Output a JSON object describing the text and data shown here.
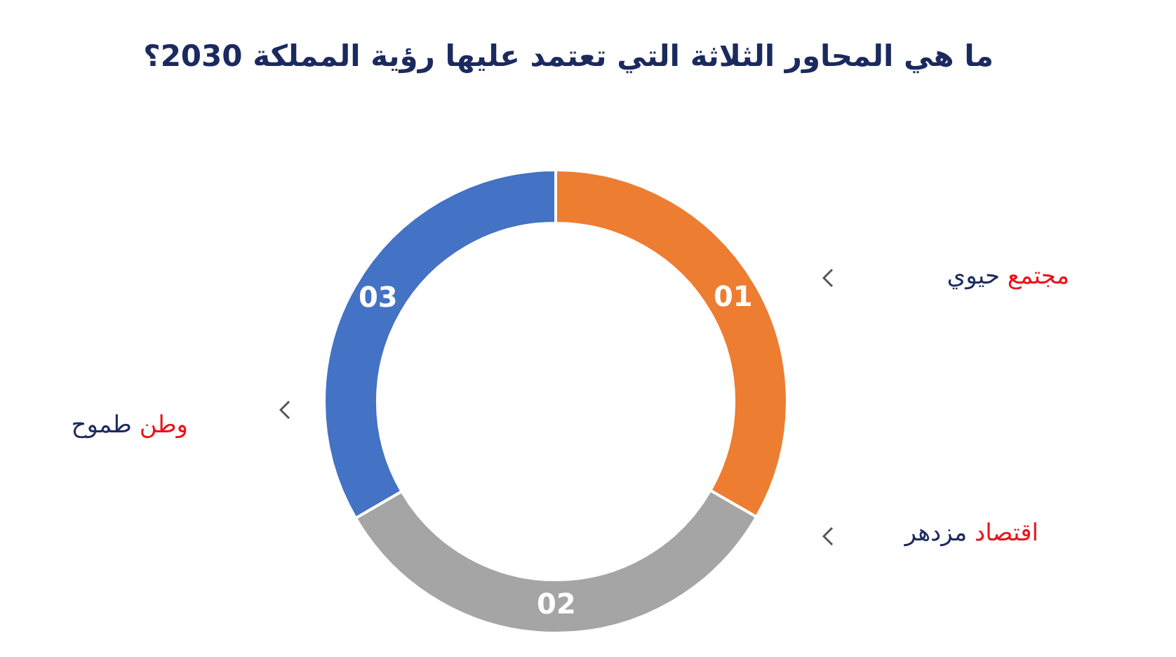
{
  "chart_data": {
    "type": "donut",
    "title": "ما هي المحاور الثلاثة التي تعتمد عليها رؤية المملكة 2030؟",
    "categories": [
      "01",
      "02",
      "03"
    ],
    "values": [
      33.3,
      33.3,
      33.4
    ],
    "colors": [
      "#ed7d31",
      "#a5a5a5",
      "#4472c4"
    ],
    "annotations": [
      "مجتمع حيوي",
      "اقتصاد مزدهر",
      "وطن طموح"
    ],
    "legend": false
  }
}
